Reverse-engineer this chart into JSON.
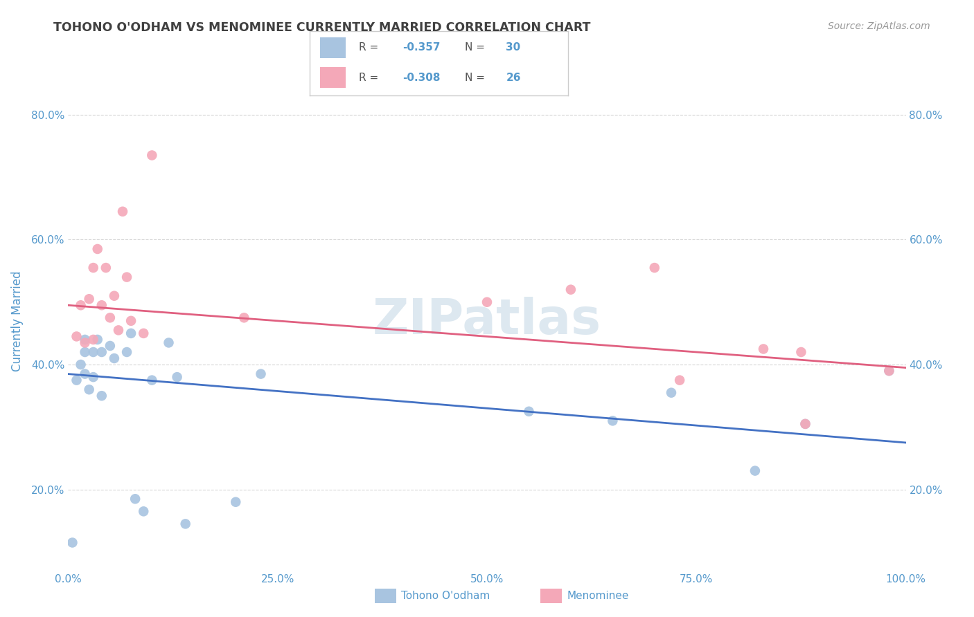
{
  "title": "TOHONO O'ODHAM VS MENOMINEE CURRENTLY MARRIED CORRELATION CHART",
  "source": "Source: ZipAtlas.com",
  "ylabel": "Currently Married",
  "legend_label1": "Tohono O'odham",
  "legend_label2": "Menominee",
  "r1": "-0.357",
  "n1": "30",
  "r2": "-0.308",
  "n2": "26",
  "blue_color": "#a8c4e0",
  "pink_color": "#f4a8b8",
  "blue_line_color": "#4472c4",
  "pink_line_color": "#e06080",
  "background_color": "#ffffff",
  "grid_color": "#cccccc",
  "title_color": "#404040",
  "axis_color": "#5599cc",
  "watermark_color": "#dde8f0",
  "xlim": [
    0.0,
    1.0
  ],
  "ylim": [
    0.07,
    0.87
  ],
  "yticks": [
    0.2,
    0.4,
    0.6,
    0.8
  ],
  "xticks": [
    0.0,
    0.25,
    0.5,
    0.75,
    1.0
  ],
  "tohono_x": [
    0.005,
    0.01,
    0.015,
    0.02,
    0.02,
    0.02,
    0.025,
    0.03,
    0.03,
    0.035,
    0.04,
    0.04,
    0.05,
    0.055,
    0.07,
    0.075,
    0.08,
    0.09,
    0.1,
    0.12,
    0.13,
    0.14,
    0.2,
    0.23,
    0.55,
    0.65,
    0.72,
    0.82,
    0.88,
    0.98
  ],
  "tohono_y": [
    0.115,
    0.375,
    0.4,
    0.42,
    0.44,
    0.385,
    0.36,
    0.38,
    0.42,
    0.44,
    0.35,
    0.42,
    0.43,
    0.41,
    0.42,
    0.45,
    0.185,
    0.165,
    0.375,
    0.435,
    0.38,
    0.145,
    0.18,
    0.385,
    0.325,
    0.31,
    0.355,
    0.23,
    0.305,
    0.39
  ],
  "menominee_x": [
    0.01,
    0.015,
    0.02,
    0.025,
    0.03,
    0.03,
    0.035,
    0.04,
    0.045,
    0.05,
    0.055,
    0.06,
    0.065,
    0.07,
    0.075,
    0.09,
    0.1,
    0.21,
    0.5,
    0.6,
    0.7,
    0.73,
    0.83,
    0.875,
    0.88,
    0.98
  ],
  "menominee_y": [
    0.445,
    0.495,
    0.435,
    0.505,
    0.44,
    0.555,
    0.585,
    0.495,
    0.555,
    0.475,
    0.51,
    0.455,
    0.645,
    0.54,
    0.47,
    0.45,
    0.735,
    0.475,
    0.5,
    0.52,
    0.555,
    0.375,
    0.425,
    0.42,
    0.305,
    0.39
  ],
  "blue_line_y0": 0.385,
  "blue_line_y1": 0.275,
  "pink_line_y0": 0.495,
  "pink_line_y1": 0.395
}
